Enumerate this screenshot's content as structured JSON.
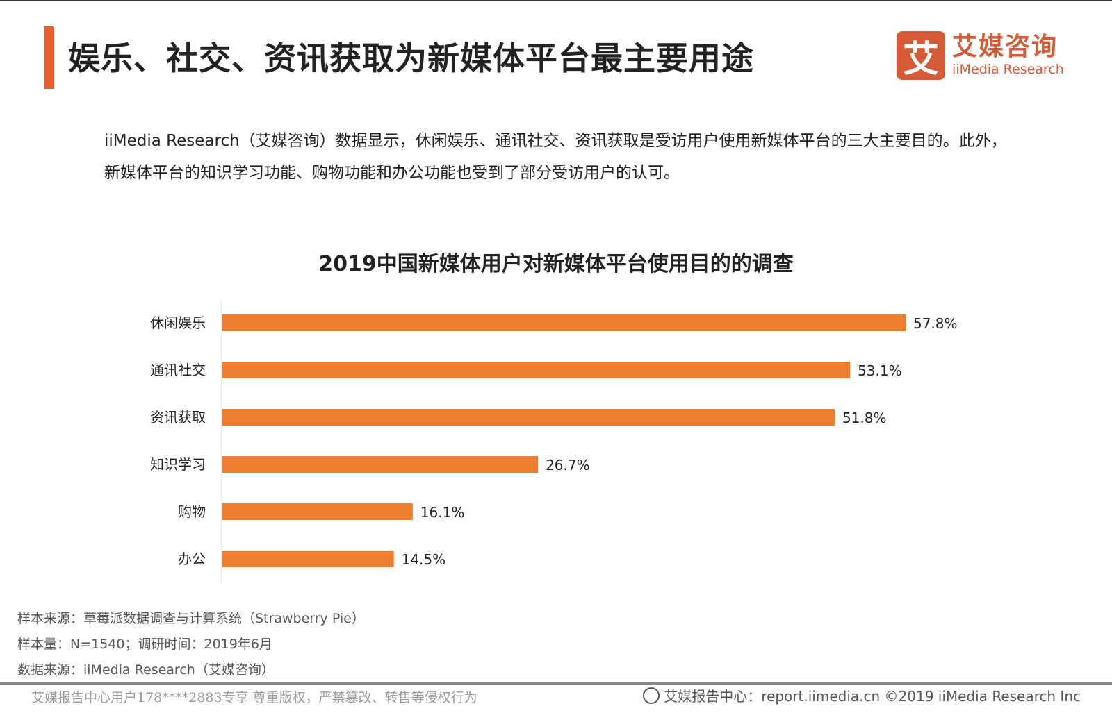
{
  "header": {
    "title": "娱乐、社交、资讯获取为新媒体平台最主要用途",
    "logo_mark": "艾",
    "logo_cn": "艾媒咨询",
    "logo_en": "iiMedia Research"
  },
  "description": "iiMedia Research（艾媒咨询）数据显示，休闲娱乐、通讯社交、资讯获取是受访用户使用新媒体平台的三大主要目的。此外，新媒体平台的知识学习功能、购物功能和办公功能也受到了部分受访用户的认可。",
  "chart_data": {
    "type": "bar",
    "orientation": "horizontal",
    "title": "2019中国新媒体用户对新媒体平台使用目的的调查",
    "categories": [
      "休闲娱乐",
      "通讯社交",
      "资讯获取",
      "知识学习",
      "购物",
      "办公"
    ],
    "values": [
      57.8,
      53.1,
      51.8,
      26.7,
      16.1,
      14.5
    ],
    "labels": [
      "57.8%",
      "53.1%",
      "51.8%",
      "26.7%",
      "16.1%",
      "14.5%"
    ],
    "unit": "%",
    "color": "#ed7d31",
    "xlim": [
      0,
      60
    ],
    "grid": false
  },
  "notes": [
    "样本来源：草莓派数据调查与计算系统（Strawberry Pie）",
    "样本量：N=1540；调研时间：2019年6月",
    "数据来源：iiMedia Research（艾媒咨询）"
  ],
  "footer": {
    "left": "艾媒报告中心用户178****2883专享 尊重版权，严禁篡改、转售等侵权行为",
    "right": "艾媒报告中心：report.iimedia.cn  ©2019  iiMedia Research  Inc"
  }
}
